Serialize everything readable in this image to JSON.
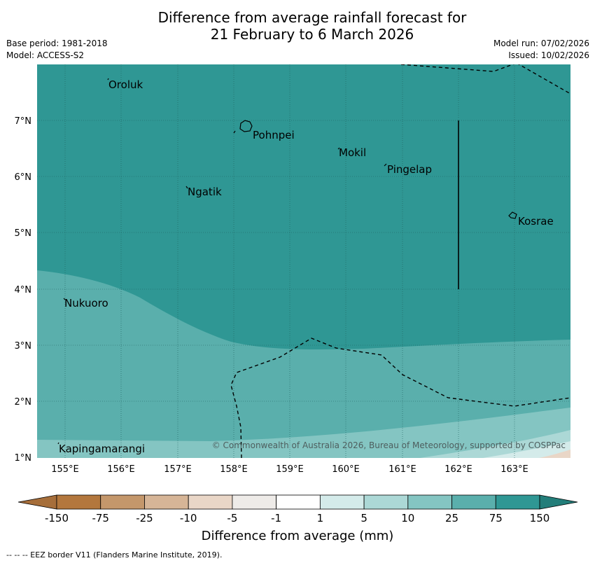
{
  "title_line1": "Difference from average rainfall forecast for",
  "title_line2": "21 February to 6 March 2026",
  "base_period": "Base period: 1981-2018",
  "model": "Model: ACCESS-S2",
  "model_run": "Model run: 07/02/2026",
  "issued": "Issued: 10/02/2026",
  "copyright": "© Commonwealth of Australia 2026, Bureau of Meteorology, supported by COSPPac",
  "lon_labels": [
    "155°E",
    "156°E",
    "157°E",
    "158°E",
    "159°E",
    "160°E",
    "161°E",
    "162°E",
    "163°E"
  ],
  "lat_labels": [
    "7°N",
    "6°N",
    "5°N",
    "4°N",
    "3°N",
    "2°N",
    "1°N"
  ],
  "places": [
    {
      "name": "Oroluk"
    },
    {
      "name": "Pohnpei"
    },
    {
      "name": "Mokil"
    },
    {
      "name": "Pingelap"
    },
    {
      "name": "Ngatik"
    },
    {
      "name": "Kosrae"
    },
    {
      "name": "Nukuoro"
    },
    {
      "name": "Kapingamarangi"
    }
  ],
  "colorbar": {
    "title": "Difference from average (mm)",
    "ticks": [
      "-150",
      "-75",
      "-25",
      "-10",
      "-5",
      "-1",
      "1",
      "5",
      "10",
      "25",
      "75",
      "150"
    ],
    "colors": [
      "#a66e3a",
      "#b3773d",
      "#c4976b",
      "#d6b597",
      "#e9d6c7",
      "#eeebe8",
      "#ffffff",
      "#d4ebea",
      "#acd8d6",
      "#84c5c2",
      "#5aafac",
      "#2f9794",
      "#237e7a"
    ]
  },
  "footer": "--  --  -- EEZ border V11 (Flanders Marine Institute, 2019)."
}
